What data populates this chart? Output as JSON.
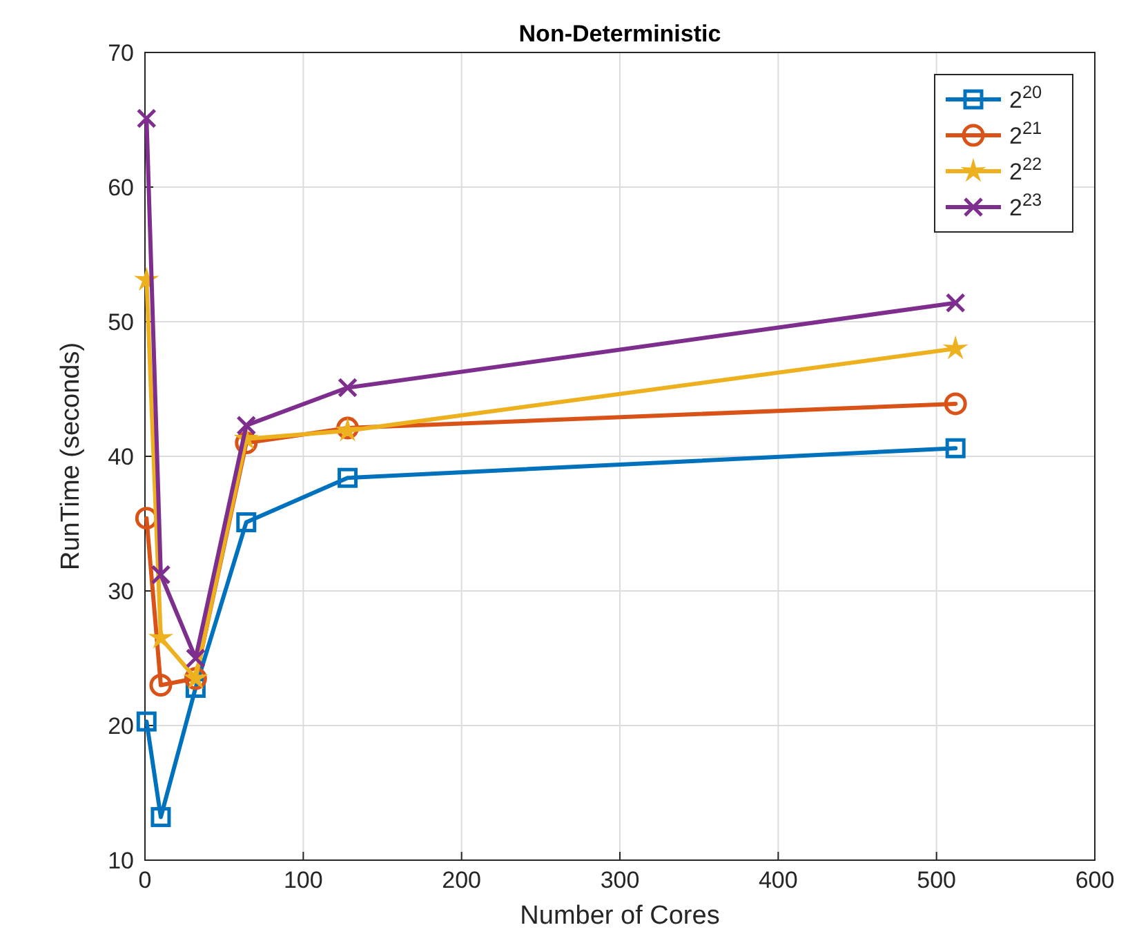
{
  "chart_data": {
    "type": "line",
    "title": "Non-Deterministic",
    "xlabel": "Number of Cores",
    "ylabel": "RunTime (seconds)",
    "x": [
      1,
      10,
      32,
      64,
      128,
      512
    ],
    "series": [
      {
        "name": "2$^{20}$",
        "color": "#0072bd",
        "marker": "square",
        "values": [
          20.3,
          13.2,
          22.8,
          35.1,
          38.4,
          40.6
        ]
      },
      {
        "name": "2$^{21}$",
        "color": "#d95319",
        "marker": "circle",
        "values": [
          35.4,
          23.0,
          23.5,
          41.0,
          42.1,
          43.9
        ]
      },
      {
        "name": "2$^{22}$",
        "color": "#edb120",
        "marker": "star",
        "values": [
          53.1,
          26.5,
          23.5,
          41.3,
          41.9,
          48.0
        ]
      },
      {
        "name": "2$^{23}$",
        "color": "#7e2f8e",
        "marker": "cross",
        "values": [
          65.1,
          31.2,
          25.0,
          42.3,
          45.1,
          51.4
        ]
      }
    ],
    "xlim": [
      0,
      600
    ],
    "xticks": [
      0,
      100,
      200,
      300,
      400,
      500,
      600
    ],
    "ylim": [
      10,
      70
    ],
    "yticks": [
      10,
      20,
      30,
      40,
      50,
      60,
      70
    ],
    "grid": true,
    "legend": "top right",
    "line_style": "solid"
  }
}
